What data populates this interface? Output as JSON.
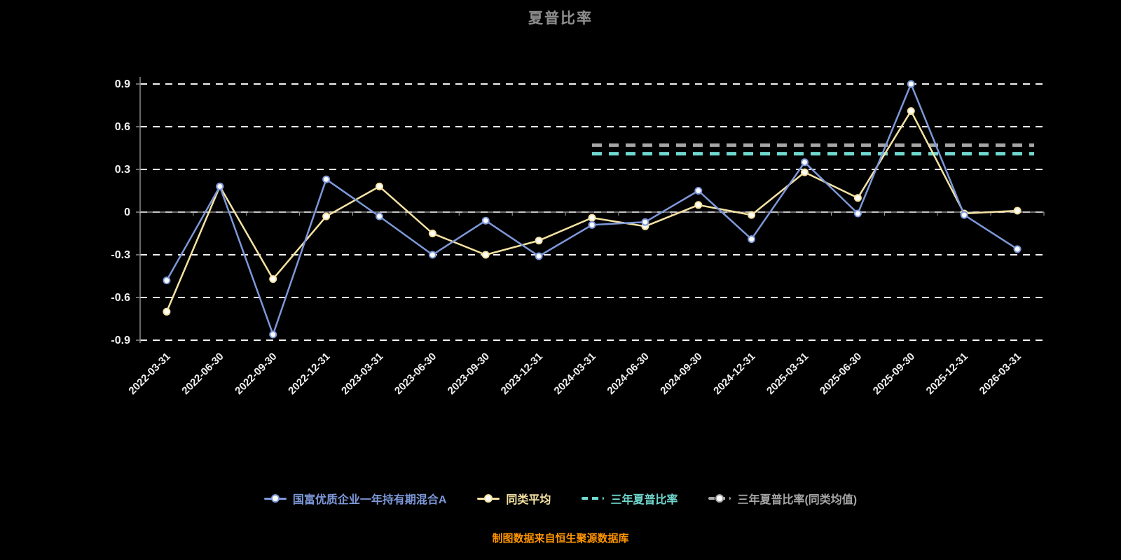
{
  "title": "夏普比率",
  "caption": "制图数据来自恒生聚源数据库",
  "colors": {
    "background": "#000000",
    "title": "#8e8e8e",
    "caption": "#ff9500",
    "grid": "#ffffff",
    "axis": "#aaaaaa",
    "axis_label": "#f0f0f0",
    "y_axis_line": "#8a8a8a"
  },
  "chart_data": {
    "type": "line",
    "title": "夏普比率",
    "xlabel": "",
    "ylabel": "",
    "ylim": [
      -0.9,
      0.9
    ],
    "yticks": [
      0.9,
      0.6,
      0.3,
      0,
      -0.3,
      -0.6,
      -0.9
    ],
    "ytick_labels": [
      "0.9",
      "0.6",
      "0.3",
      "0",
      "-0.3",
      "-0.6",
      "-0.9"
    ],
    "grid": true,
    "legend_position": "bottom",
    "categories": [
      "2022-03-31",
      "2022-06-30",
      "2022-09-30",
      "2022-12-31",
      "2023-03-31",
      "2023-06-30",
      "2023-09-30",
      "2023-12-31",
      "2024-03-31",
      "2024-06-30",
      "2024-09-30",
      "2024-12-31",
      "2025-03-31",
      "2025-06-30",
      "2025-09-30",
      "2025-12-31",
      "2026-03-31"
    ],
    "series": [
      {
        "name": "国富优质企业一年持有期混合A",
        "color": "#7d98d9",
        "line_style": "solid",
        "marker": "circle",
        "values": [
          -0.48,
          0.18,
          -0.86,
          0.23,
          -0.03,
          -0.3,
          -0.06,
          -0.31,
          -0.09,
          -0.07,
          0.15,
          -0.19,
          0.35,
          -0.01,
          0.9,
          -0.02,
          -0.26
        ]
      },
      {
        "name": "同类平均",
        "color": "#f6e3a3",
        "line_style": "solid",
        "marker": "circle",
        "values": [
          -0.7,
          0.18,
          -0.47,
          -0.03,
          0.18,
          -0.15,
          -0.3,
          -0.2,
          -0.04,
          -0.1,
          0.05,
          -0.02,
          0.28,
          0.1,
          0.71,
          -0.01,
          0.01
        ]
      },
      {
        "name": "三年夏普比率",
        "color": "#70d8cf",
        "line_style": "dashed",
        "marker": "none",
        "values": [
          null,
          null,
          null,
          null,
          null,
          null,
          null,
          null,
          0.41,
          0.41,
          0.41,
          0.41,
          0.41,
          0.41,
          0.41,
          0.41,
          0.41
        ]
      },
      {
        "name": "三年夏普比率(同类均值)",
        "color": "#a6a6a6",
        "line_style": "dashed",
        "marker": "circle",
        "values": [
          null,
          null,
          null,
          null,
          null,
          null,
          null,
          null,
          0.47,
          0.47,
          0.47,
          0.47,
          0.47,
          0.47,
          0.47,
          0.47,
          0.47
        ]
      }
    ]
  }
}
